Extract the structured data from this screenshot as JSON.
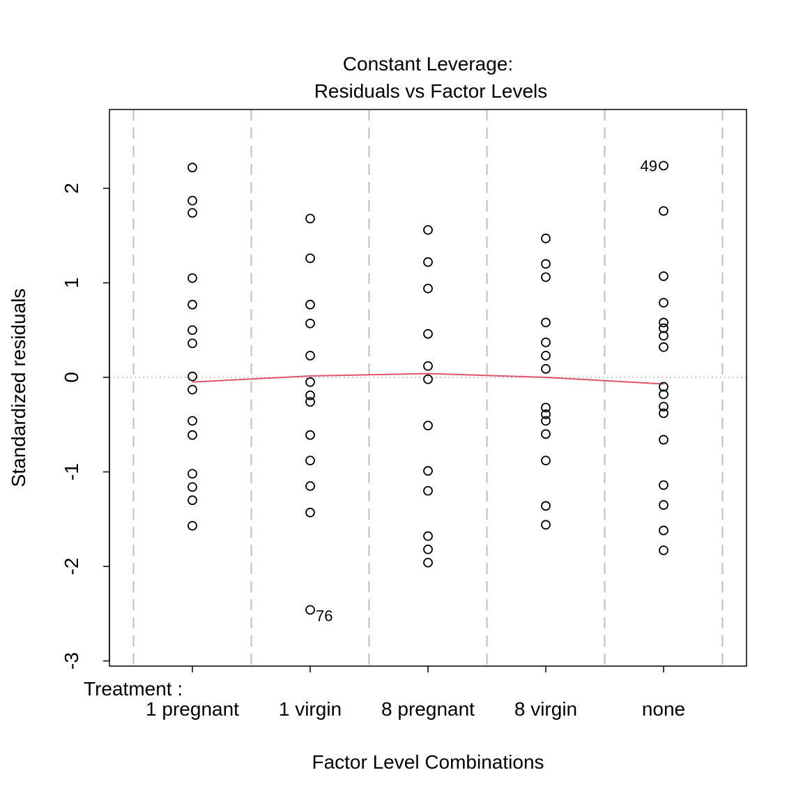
{
  "chart_data": {
    "type": "scatter",
    "title": "Constant Leverage:",
    "subtitle": "Residuals vs Factor Levels",
    "y_label": "Standardized residuals",
    "x_label": "Factor Level Combinations",
    "factor_name": "Treatment :",
    "categories": [
      "1 pregnant",
      "1 virgin",
      "8 pregnant",
      "8 virgin",
      "none"
    ],
    "ylim": [
      -3.055,
      2.834
    ],
    "yticks": [
      -3,
      -2,
      -1,
      0,
      1,
      2
    ],
    "reference_line": 0,
    "point_color": "#000000",
    "series": [
      {
        "values": [
          2.22,
          1.87,
          1.74,
          1.05,
          0.77,
          0.5,
          0.36,
          0.01,
          -0.13,
          -0.46,
          -0.61,
          -1.02,
          -1.16,
          -1.3,
          -1.57
        ],
        "point_labels": [
          null,
          null,
          null,
          null,
          null,
          null,
          null,
          null,
          null,
          null,
          null,
          null,
          null,
          null,
          null
        ]
      },
      {
        "values": [
          1.68,
          1.26,
          0.77,
          0.57,
          0.23,
          -0.05,
          -0.19,
          -0.26,
          -0.61,
          -0.88,
          -1.15,
          -1.43,
          -2.46
        ],
        "point_labels": [
          null,
          null,
          null,
          null,
          null,
          null,
          null,
          null,
          null,
          null,
          null,
          null,
          "76"
        ]
      },
      {
        "values": [
          1.56,
          1.22,
          0.94,
          0.46,
          0.12,
          -0.02,
          -0.51,
          -0.99,
          -1.2,
          -1.68,
          -1.82,
          -1.96
        ],
        "point_labels": [
          null,
          null,
          null,
          null,
          null,
          null,
          null,
          null,
          null,
          null,
          null,
          null
        ]
      },
      {
        "values": [
          1.47,
          1.2,
          1.06,
          0.58,
          0.37,
          0.23,
          0.09,
          -0.32,
          -0.39,
          -0.46,
          -0.6,
          -0.88,
          -1.36,
          -1.56
        ],
        "point_labels": [
          null,
          null,
          null,
          null,
          null,
          null,
          null,
          null,
          null,
          null,
          null,
          null,
          null,
          null
        ]
      },
      {
        "values": [
          2.24,
          1.76,
          1.07,
          0.79,
          0.58,
          0.52,
          0.44,
          0.32,
          -0.1,
          -0.18,
          -0.31,
          -0.38,
          -0.66,
          -1.14,
          -1.35,
          -1.62,
          -1.83
        ],
        "point_labels": [
          "49",
          null,
          null,
          null,
          null,
          null,
          null,
          null,
          null,
          null,
          null,
          null,
          null,
          null,
          null,
          null,
          null
        ]
      }
    ],
    "smooth": {
      "color": "#DF536B",
      "values": [
        -0.05,
        0.015,
        0.04,
        0.0,
        -0.07
      ]
    }
  }
}
